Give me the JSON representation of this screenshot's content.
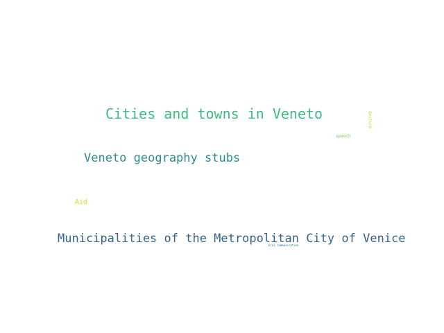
{
  "words": [
    {
      "text": "Cities and towns in Veneto",
      "color": "#3fbc83"
    },
    {
      "text": "Veneto geography stubs",
      "color": "#2d8a8d"
    },
    {
      "text": "Municipalities of the Metropolitan City of Venice",
      "color": "#36648b"
    },
    {
      "text": "Aid",
      "color": "#d3d826"
    },
    {
      "text": "speech",
      "color": "#7ad151"
    },
    {
      "text": "Oral communication",
      "color": "#2f6f8e"
    },
    {
      "text": "Gesture",
      "color": "#b8de29"
    }
  ]
}
